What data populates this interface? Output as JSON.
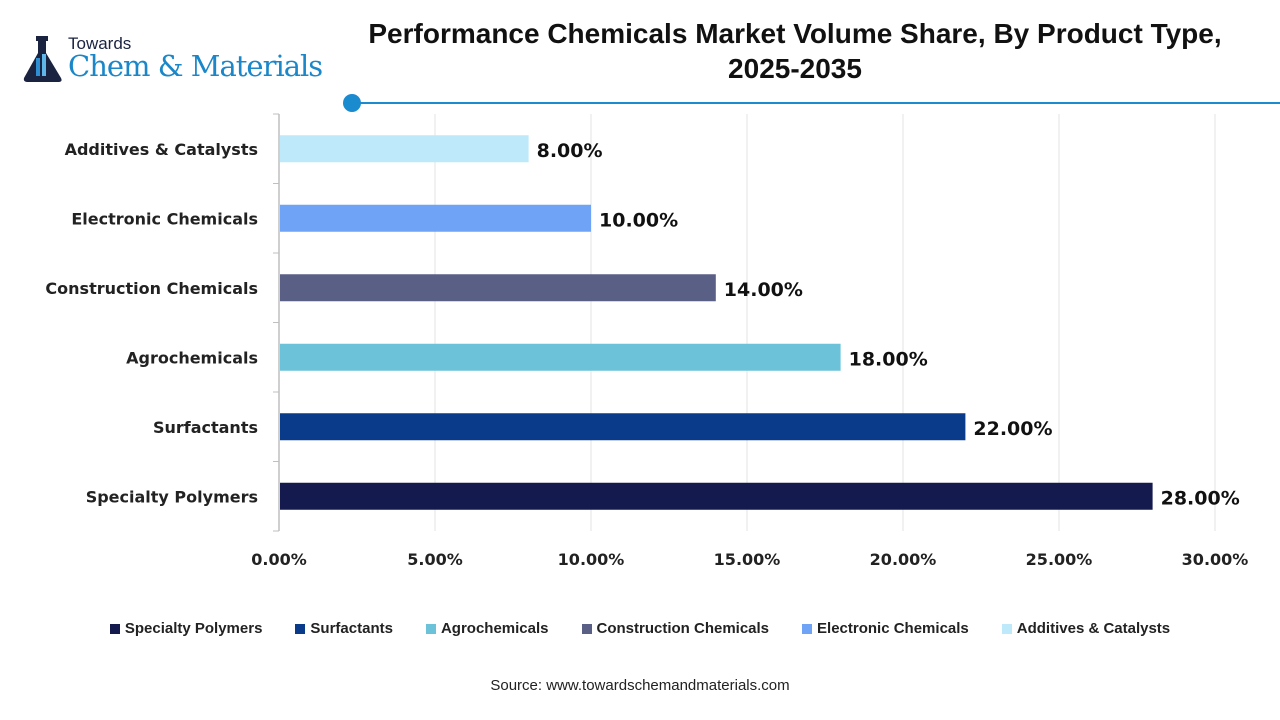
{
  "logo": {
    "line1": "Towards",
    "line2": "Chem & Materials"
  },
  "title": "Performance Chemicals Market Volume Share, By Product Type, 2025-2035",
  "source": "Source: www.towardschemandmaterials.com",
  "chart_data": {
    "type": "bar",
    "orientation": "horizontal",
    "categories": [
      "Specialty Polymers",
      "Surfactants",
      "Agrochemicals",
      "Construction Chemicals",
      "Electronic Chemicals",
      "Additives & Catalysts"
    ],
    "values": [
      28,
      22,
      18,
      14,
      10,
      8
    ],
    "data_labels": [
      "28.00%",
      "22.00%",
      "18.00%",
      "14.00%",
      "10.00%",
      "8.00%"
    ],
    "colors": [
      "#141a4e",
      "#0a3a8a",
      "#6cc3d9",
      "#5a5f85",
      "#6fa3f5",
      "#bde9fa"
    ],
    "xlim": [
      0,
      30
    ],
    "xticks": [
      "0.00%",
      "5.00%",
      "10.00%",
      "15.00%",
      "20.00%",
      "25.00%",
      "30.00%"
    ],
    "grid": true,
    "legend_position": "bottom"
  }
}
